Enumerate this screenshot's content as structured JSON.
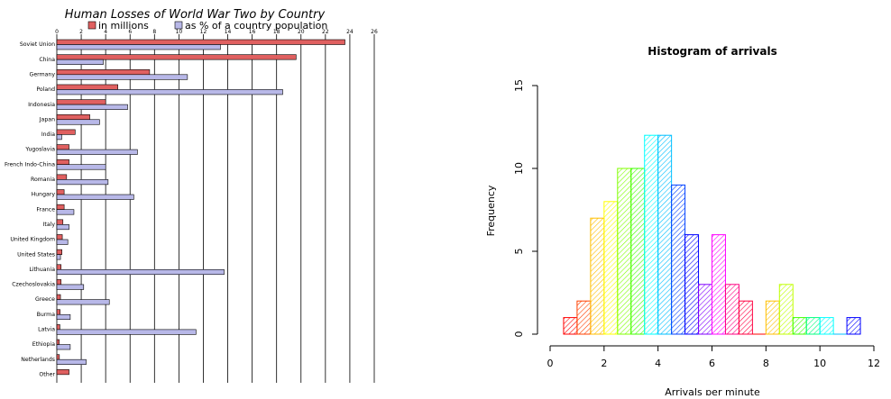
{
  "chart_data": [
    {
      "type": "bar",
      "orientation": "horizontal",
      "title": "Human Losses of World War Two by Country",
      "categories": [
        "Soviet Union",
        "China",
        "Germany",
        "Poland",
        "Indonesia",
        "Japan",
        "India",
        "Yugoslavia",
        "French Indo-China",
        "Romania",
        "Hungary",
        "France",
        "Italy",
        "United Kingdom",
        "United States",
        "Lithuania",
        "Czechoslovakia",
        "Greece",
        "Burma",
        "Latvia",
        "Ethiopia",
        "Netherlands",
        "Other"
      ],
      "series": [
        {
          "name": "in millions",
          "color": "#e06060",
          "values": [
            23.6,
            19.6,
            7.6,
            5.0,
            4.0,
            2.7,
            1.5,
            1.0,
            1.0,
            0.8,
            0.6,
            0.6,
            0.5,
            0.45,
            0.42,
            0.35,
            0.35,
            0.3,
            0.27,
            0.25,
            0.2,
            0.21,
            1.0
          ]
        },
        {
          "name": "as % of a country population",
          "color": "#b8b8e8",
          "values": [
            13.4,
            3.8,
            10.7,
            18.5,
            5.8,
            3.5,
            0.4,
            6.6,
            4.0,
            4.2,
            6.3,
            1.4,
            1.0,
            0.9,
            0.3,
            13.7,
            2.2,
            4.3,
            1.1,
            11.4,
            1.1,
            2.4,
            0.0
          ]
        }
      ],
      "xlim": [
        0,
        26
      ],
      "xticks": [
        "0",
        "2",
        "4",
        "6",
        "8",
        "10",
        "12",
        "14",
        "16",
        "18",
        "20",
        "22",
        "24",
        "26"
      ],
      "legend": "top"
    },
    {
      "type": "histogram",
      "title": "Histogram of arrivals",
      "xlabel": "Arrivals per minute",
      "ylabel": "Frequency",
      "xlim": [
        0,
        12
      ],
      "ylim": [
        0,
        15
      ],
      "xticks": [
        "0",
        "2",
        "4",
        "6",
        "8",
        "10",
        "12"
      ],
      "yticks": [
        "0",
        "5",
        "10",
        "15"
      ],
      "bin_width": 0.5,
      "bins_start": 0.5,
      "frequencies": [
        1,
        2,
        7,
        8,
        10,
        10,
        12,
        12,
        9,
        6,
        3,
        6,
        3,
        2,
        0,
        2,
        3,
        1,
        1,
        1,
        0,
        1
      ],
      "colors": [
        "#ff0000",
        "#ff4000",
        "#ffbf00",
        "#ffff00",
        "#80ff00",
        "#40ff00",
        "#00ffff",
        "#00bfff",
        "#0040ff",
        "#0000ff",
        "#8000ff",
        "#ff00ff",
        "#ff0080",
        "#ff0040",
        "#ff0000",
        "#ffbf00",
        "#c0ff00",
        "#40ff00",
        "#00ff80",
        "#00ffff",
        "#00bfff",
        "#0000ff"
      ]
    }
  ]
}
